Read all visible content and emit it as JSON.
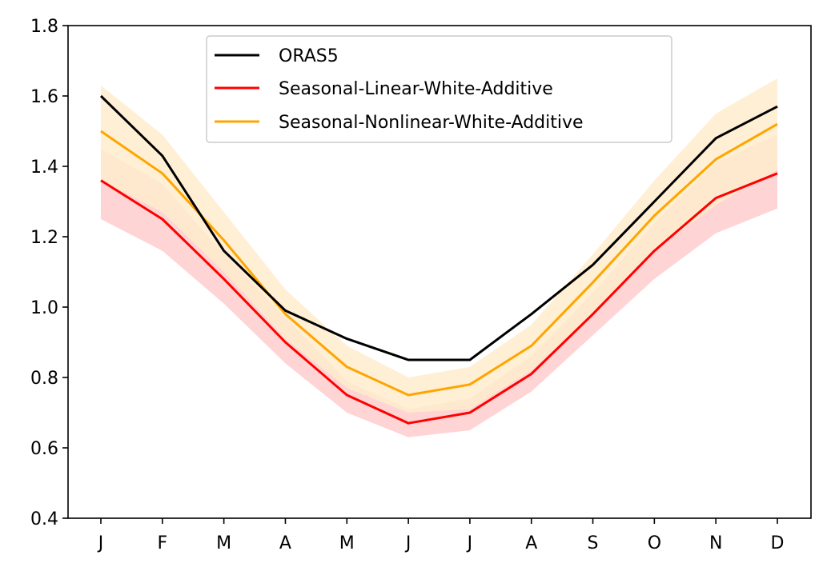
{
  "chart_data": {
    "type": "line",
    "title": "",
    "xlabel": "",
    "ylabel": "",
    "categories": [
      "J",
      "F",
      "M",
      "A",
      "M",
      "J",
      "J",
      "A",
      "S",
      "O",
      "N",
      "D"
    ],
    "ylim": [
      0.4,
      1.8
    ],
    "yticks": [
      "0.4",
      "0.6",
      "0.8",
      "1.0",
      "1.2",
      "1.4",
      "1.6",
      "1.8"
    ],
    "legend_position": "top-center",
    "series": [
      {
        "name": "ORAS5",
        "color": "#000000",
        "values": [
          1.6,
          1.43,
          1.16,
          0.99,
          0.91,
          0.85,
          0.85,
          0.98,
          1.12,
          1.3,
          1.48,
          1.57
        ]
      },
      {
        "name": "Seasonal-Linear-White-Additive",
        "color": "#ff0000",
        "band_color": "#ffcccc",
        "values": [
          1.36,
          1.25,
          1.08,
          0.9,
          0.75,
          0.67,
          0.7,
          0.81,
          0.98,
          1.16,
          1.31,
          1.38
        ],
        "lower": [
          1.25,
          1.16,
          1.01,
          0.84,
          0.7,
          0.63,
          0.65,
          0.76,
          0.92,
          1.08,
          1.21,
          1.28
        ],
        "upper": [
          1.45,
          1.35,
          1.15,
          0.97,
          0.79,
          0.71,
          0.74,
          0.86,
          1.04,
          1.24,
          1.41,
          1.49
        ]
      },
      {
        "name": "Seasonal-Nonlinear-White-Additive",
        "color": "#ffa500",
        "band_color": "#ffeccc",
        "values": [
          1.5,
          1.38,
          1.19,
          0.98,
          0.83,
          0.75,
          0.78,
          0.89,
          1.07,
          1.26,
          1.42,
          1.52
        ],
        "lower": [
          1.36,
          1.27,
          1.1,
          0.91,
          0.77,
          0.7,
          0.71,
          0.82,
          0.98,
          1.16,
          1.29,
          1.39
        ],
        "upper": [
          1.63,
          1.49,
          1.27,
          1.05,
          0.89,
          0.8,
          0.83,
          0.95,
          1.15,
          1.36,
          1.55,
          1.65
        ]
      }
    ]
  }
}
